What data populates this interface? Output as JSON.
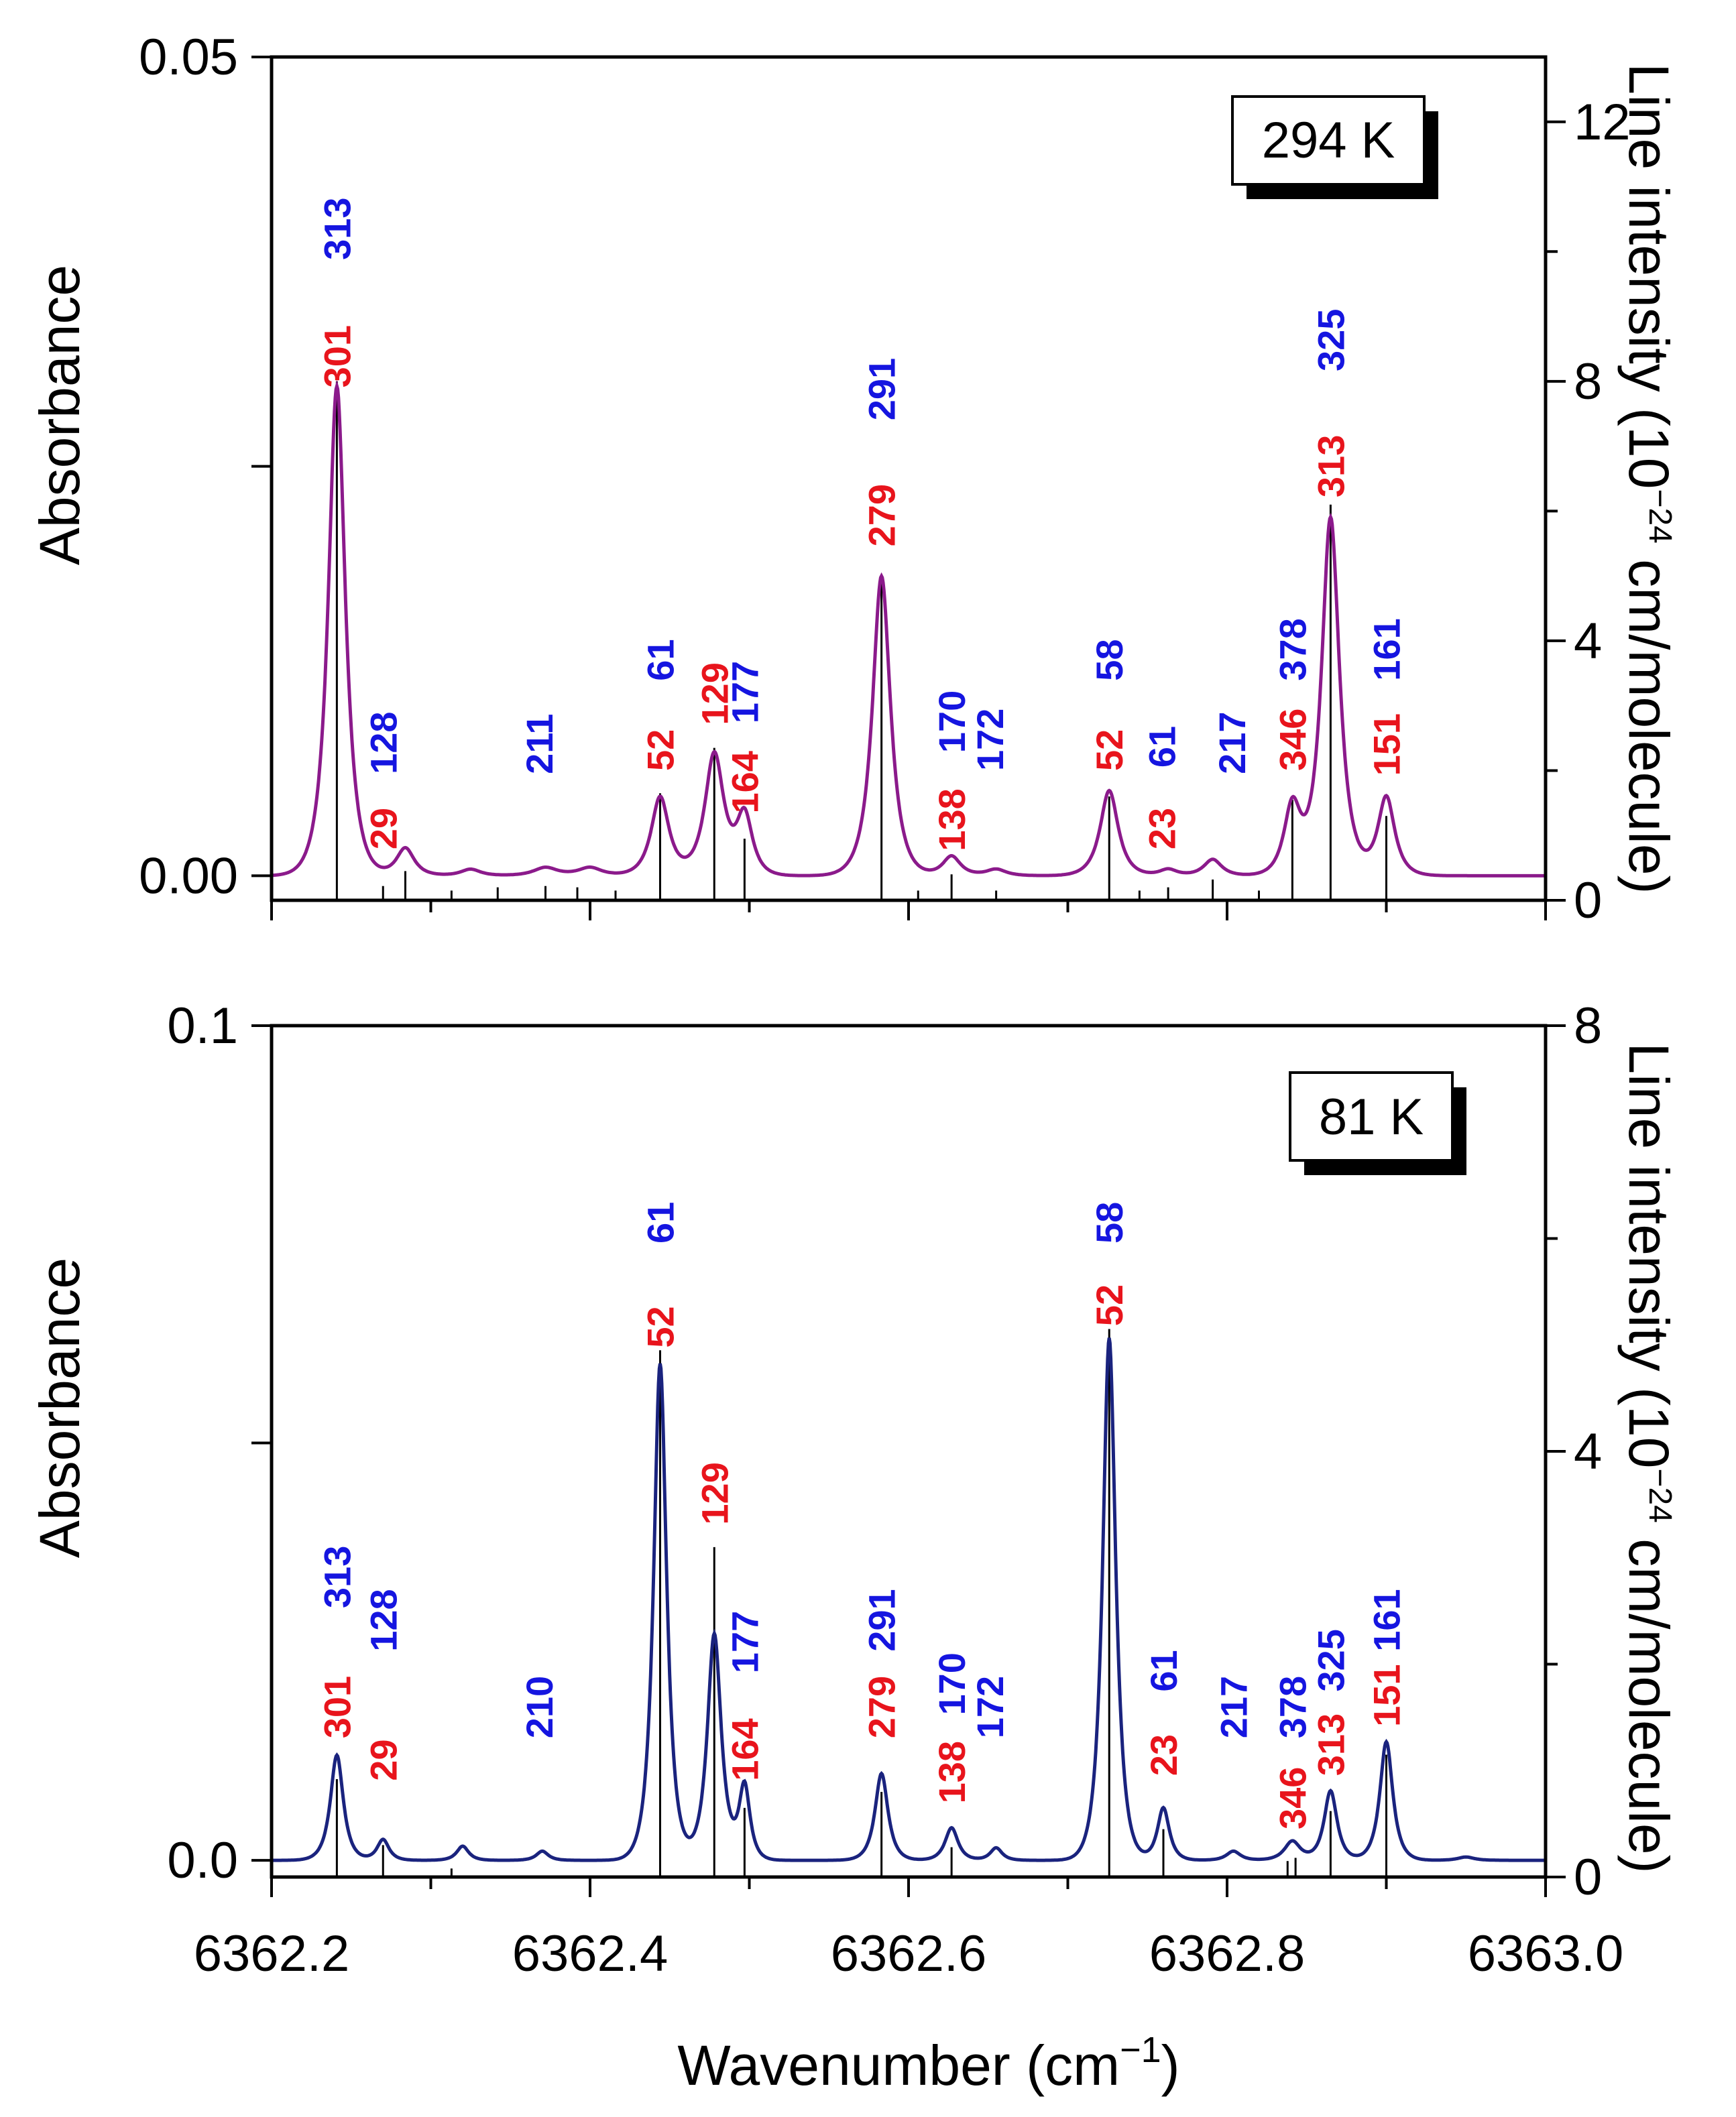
{
  "colors": {
    "red": "#e8141c",
    "blue": "#1515e0",
    "top_curve": "#8b1a8b",
    "bottom_curve": "#1a237e",
    "axis": "#000000"
  },
  "xaxis": {
    "label_main": "Wavenumber (cm",
    "label_sup": "−1",
    "label_end": ")",
    "range": [
      6362.2,
      6363.0
    ],
    "ticks": [
      6362.2,
      6362.4,
      6362.6,
      6362.8,
      6363.0
    ],
    "tick_labels": [
      "6362.2",
      "6362.4",
      "6362.6",
      "6362.8",
      "6363.0"
    ]
  },
  "chart_data": [
    {
      "type": "line",
      "panel": "top",
      "temperature_label": "294 K",
      "ylabel_left": "Absorbance",
      "ylabel_right_main": "Line intensity (10",
      "ylabel_right_sup": "−24",
      "ylabel_right_end": " cm/molecule)",
      "ylim_left": [
        -0.0015,
        0.05
      ],
      "ylim_right": [
        0,
        13
      ],
      "left_ticks": [
        0.0,
        0.05
      ],
      "left_tick_labels": [
        "0.00",
        "0.05"
      ],
      "right_ticks": [
        0,
        4,
        8,
        12
      ],
      "right_tick_labels": [
        "0",
        "4",
        "8",
        "12"
      ],
      "baseline": 0.0,
      "peaks": [
        {
          "x": 6362.241,
          "height": 0.0299,
          "width": 0.0085
        },
        {
          "x": 6362.284,
          "height": 0.0017,
          "width": 0.009
        },
        {
          "x": 6362.325,
          "height": 0.0004,
          "width": 0.01
        },
        {
          "x": 6362.372,
          "height": 0.0005,
          "width": 0.012
        },
        {
          "x": 6362.4,
          "height": 0.0005,
          "width": 0.012
        },
        {
          "x": 6362.444,
          "height": 0.0048,
          "width": 0.009
        },
        {
          "x": 6362.478,
          "height": 0.0074,
          "width": 0.0095
        },
        {
          "x": 6362.497,
          "height": 0.0036,
          "width": 0.008
        },
        {
          "x": 6362.583,
          "height": 0.0183,
          "width": 0.009
        },
        {
          "x": 6362.627,
          "height": 0.0012,
          "width": 0.009
        },
        {
          "x": 6362.655,
          "height": 0.0004,
          "width": 0.01
        },
        {
          "x": 6362.726,
          "height": 0.0052,
          "width": 0.009
        },
        {
          "x": 6362.763,
          "height": 0.0004,
          "width": 0.009
        },
        {
          "x": 6362.791,
          "height": 0.001,
          "width": 0.009
        },
        {
          "x": 6362.841,
          "height": 0.0042,
          "width": 0.0085
        },
        {
          "x": 6362.865,
          "height": 0.0218,
          "width": 0.009
        },
        {
          "x": 6362.9,
          "height": 0.0048,
          "width": 0.0085
        }
      ],
      "sticks": [
        {
          "x": 6362.241,
          "intensity": 8.0
        },
        {
          "x": 6362.27,
          "intensity": 0.22
        },
        {
          "x": 6362.284,
          "intensity": 0.45
        },
        {
          "x": 6362.313,
          "intensity": 0.15
        },
        {
          "x": 6362.342,
          "intensity": 0.2
        },
        {
          "x": 6362.372,
          "intensity": 0.22
        },
        {
          "x": 6362.392,
          "intensity": 0.2
        },
        {
          "x": 6362.416,
          "intensity": 0.15
        },
        {
          "x": 6362.444,
          "intensity": 1.65
        },
        {
          "x": 6362.478,
          "intensity": 2.35
        },
        {
          "x": 6362.497,
          "intensity": 0.95
        },
        {
          "x": 6362.583,
          "intensity": 4.95
        },
        {
          "x": 6362.606,
          "intensity": 0.15
        },
        {
          "x": 6362.627,
          "intensity": 0.4
        },
        {
          "x": 6362.655,
          "intensity": 0.15
        },
        {
          "x": 6362.726,
          "intensity": 1.6
        },
        {
          "x": 6362.745,
          "intensity": 0.15
        },
        {
          "x": 6362.763,
          "intensity": 0.2
        },
        {
          "x": 6362.791,
          "intensity": 0.32
        },
        {
          "x": 6362.82,
          "intensity": 0.15
        },
        {
          "x": 6362.841,
          "intensity": 1.55
        },
        {
          "x": 6362.865,
          "intensity": 6.1
        },
        {
          "x": 6362.9,
          "intensity": 1.3
        }
      ],
      "labels": [
        {
          "text": "301",
          "x": 6362.241,
          "color": "red",
          "y": 0.0298
        },
        {
          "text": "313",
          "x": 6362.241,
          "color": "blue",
          "y": 0.0376
        },
        {
          "text": "29",
          "x": 6362.27,
          "color": "red",
          "y": 0.0016
        },
        {
          "text": "128",
          "x": 6362.27,
          "color": "blue",
          "y": 0.0062
        },
        {
          "text": "211",
          "x": 6362.368,
          "color": "blue",
          "y": 0.0062
        },
        {
          "text": "52",
          "x": 6362.444,
          "color": "red",
          "y": 0.0064
        },
        {
          "text": "61",
          "x": 6362.444,
          "color": "blue",
          "y": 0.0119
        },
        {
          "text": "129",
          "x": 6362.478,
          "color": "red",
          "y": 0.0092
        },
        {
          "text": "177",
          "x": 6362.497,
          "color": "blue",
          "y": 0.0093
        },
        {
          "text": "164",
          "x": 6362.497,
          "color": "red",
          "y": 0.0038
        },
        {
          "text": "279",
          "x": 6362.583,
          "color": "red",
          "y": 0.0201
        },
        {
          "text": "291",
          "x": 6362.583,
          "color": "blue",
          "y": 0.0278
        },
        {
          "text": "138",
          "x": 6362.627,
          "color": "red",
          "y": 0.0015
        },
        {
          "text": "170",
          "x": 6362.627,
          "color": "blue",
          "y": 0.0075
        },
        {
          "text": "172",
          "x": 6362.651,
          "color": "blue",
          "y": 0.0064
        },
        {
          "text": "52",
          "x": 6362.726,
          "color": "red",
          "y": 0.0064
        },
        {
          "text": "58",
          "x": 6362.726,
          "color": "blue",
          "y": 0.0119
        },
        {
          "text": "23",
          "x": 6362.759,
          "color": "red",
          "y": 0.0016
        },
        {
          "text": "61",
          "x": 6362.759,
          "color": "blue",
          "y": 0.0066
        },
        {
          "text": "217",
          "x": 6362.803,
          "color": "blue",
          "y": 0.0062
        },
        {
          "text": "346",
          "x": 6362.841,
          "color": "red",
          "y": 0.0064
        },
        {
          "text": "378",
          "x": 6362.841,
          "color": "blue",
          "y": 0.0119
        },
        {
          "text": "313",
          "x": 6362.865,
          "color": "red",
          "y": 0.0231
        },
        {
          "text": "325",
          "x": 6362.865,
          "color": "blue",
          "y": 0.0308
        },
        {
          "text": "151",
          "x": 6362.9,
          "color": "red",
          "y": 0.0061
        },
        {
          "text": "161",
          "x": 6362.9,
          "color": "blue",
          "y": 0.0119
        }
      ]
    },
    {
      "type": "line",
      "panel": "bottom",
      "temperature_label": "81 K",
      "ylabel_left": "Absorbance",
      "ylabel_right_main": "Line intensity (10",
      "ylabel_right_sup": "−24",
      "ylabel_right_end": " cm/molecule)",
      "ylim_left": [
        -0.002,
        0.1
      ],
      "ylim_right": [
        0,
        8
      ],
      "left_ticks": [
        0.0,
        0.1
      ],
      "left_tick_labels": [
        "0.0",
        "0.1"
      ],
      "right_ticks": [
        0,
        4,
        8
      ],
      "right_tick_labels": [
        "0",
        "4",
        "8"
      ],
      "baseline": 0.0,
      "peaks": [
        {
          "x": 6362.241,
          "height": 0.0126,
          "width": 0.0065
        },
        {
          "x": 6362.27,
          "height": 0.0025,
          "width": 0.006
        },
        {
          "x": 6362.32,
          "height": 0.0017,
          "width": 0.006
        },
        {
          "x": 6362.37,
          "height": 0.0011,
          "width": 0.006
        },
        {
          "x": 6362.444,
          "height": 0.0595,
          "width": 0.0065
        },
        {
          "x": 6362.478,
          "height": 0.0271,
          "width": 0.007
        },
        {
          "x": 6362.497,
          "height": 0.0088,
          "width": 0.0055
        },
        {
          "x": 6362.583,
          "height": 0.0104,
          "width": 0.0065
        },
        {
          "x": 6362.627,
          "height": 0.0039,
          "width": 0.0065
        },
        {
          "x": 6362.655,
          "height": 0.0015,
          "width": 0.006
        },
        {
          "x": 6362.726,
          "height": 0.0626,
          "width": 0.0065
        },
        {
          "x": 6362.76,
          "height": 0.0063,
          "width": 0.006
        },
        {
          "x": 6362.804,
          "height": 0.0011,
          "width": 0.007
        },
        {
          "x": 6362.841,
          "height": 0.0023,
          "width": 0.008
        },
        {
          "x": 6362.865,
          "height": 0.0083,
          "width": 0.0065
        },
        {
          "x": 6362.9,
          "height": 0.0142,
          "width": 0.0065
        },
        {
          "x": 6362.95,
          "height": 0.0004,
          "width": 0.008
        }
      ],
      "sticks": [
        {
          "x": 6362.241,
          "intensity": 0.92
        },
        {
          "x": 6362.27,
          "intensity": 0.3
        },
        {
          "x": 6362.313,
          "intensity": 0.08
        },
        {
          "x": 6362.444,
          "intensity": 4.95
        },
        {
          "x": 6362.478,
          "intensity": 3.1
        },
        {
          "x": 6362.497,
          "intensity": 0.65
        },
        {
          "x": 6362.583,
          "intensity": 0.8
        },
        {
          "x": 6362.627,
          "intensity": 0.28
        },
        {
          "x": 6362.726,
          "intensity": 5.15
        },
        {
          "x": 6362.76,
          "intensity": 0.45
        },
        {
          "x": 6362.838,
          "intensity": 0.15
        },
        {
          "x": 6362.843,
          "intensity": 0.18
        },
        {
          "x": 6362.865,
          "intensity": 0.62
        },
        {
          "x": 6362.9,
          "intensity": 1.15
        }
      ],
      "labels": [
        {
          "text": "301",
          "x": 6362.241,
          "color": "red",
          "y": 0.0146
        },
        {
          "text": "313",
          "x": 6362.241,
          "color": "blue",
          "y": 0.0302
        },
        {
          "text": "29",
          "x": 6362.27,
          "color": "red",
          "y": 0.0095
        },
        {
          "text": "128",
          "x": 6362.27,
          "color": "blue",
          "y": 0.025
        },
        {
          "text": "210",
          "x": 6362.368,
          "color": "blue",
          "y": 0.0146
        },
        {
          "text": "52",
          "x": 6362.444,
          "color": "red",
          "y": 0.0614
        },
        {
          "text": "61",
          "x": 6362.444,
          "color": "blue",
          "y": 0.0739
        },
        {
          "text": "129",
          "x": 6362.478,
          "color": "red",
          "y": 0.0402
        },
        {
          "text": "177",
          "x": 6362.497,
          "color": "blue",
          "y": 0.0224
        },
        {
          "text": "164",
          "x": 6362.497,
          "color": "red",
          "y": 0.0095
        },
        {
          "text": "279",
          "x": 6362.583,
          "color": "red",
          "y": 0.0146
        },
        {
          "text": "291",
          "x": 6362.583,
          "color": "blue",
          "y": 0.025
        },
        {
          "text": "138",
          "x": 6362.627,
          "color": "red",
          "y": 0.0068
        },
        {
          "text": "170",
          "x": 6362.627,
          "color": "blue",
          "y": 0.0174
        },
        {
          "text": "172",
          "x": 6362.651,
          "color": "blue",
          "y": 0.0146
        },
        {
          "text": "52",
          "x": 6362.726,
          "color": "red",
          "y": 0.064
        },
        {
          "text": "58",
          "x": 6362.726,
          "color": "blue",
          "y": 0.0739
        },
        {
          "text": "23",
          "x": 6362.76,
          "color": "red",
          "y": 0.0101
        },
        {
          "text": "61",
          "x": 6362.76,
          "color": "blue",
          "y": 0.0202
        },
        {
          "text": "217",
          "x": 6362.804,
          "color": "blue",
          "y": 0.0146
        },
        {
          "text": "346",
          "x": 6362.841,
          "color": "red",
          "y": 0.0037
        },
        {
          "text": "378",
          "x": 6362.841,
          "color": "blue",
          "y": 0.0146
        },
        {
          "text": "313",
          "x": 6362.865,
          "color": "red",
          "y": 0.0101
        },
        {
          "text": "325",
          "x": 6362.865,
          "color": "blue",
          "y": 0.0202
        },
        {
          "text": "151",
          "x": 6362.9,
          "color": "red",
          "y": 0.016
        },
        {
          "text": "161",
          "x": 6362.9,
          "color": "blue",
          "y": 0.025
        }
      ]
    }
  ]
}
